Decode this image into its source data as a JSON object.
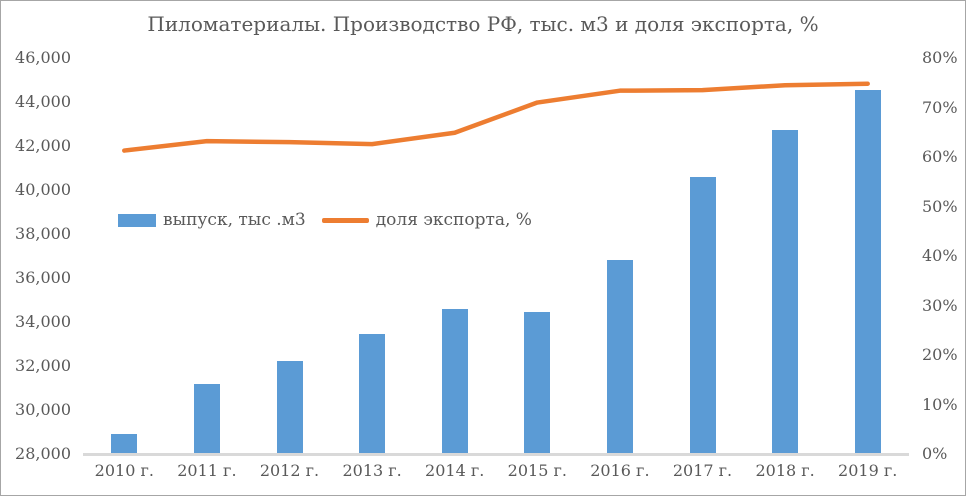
{
  "window": {
    "background": "#ffffff",
    "border_color": "#a6a6a6"
  },
  "colors": {
    "text": "#595959",
    "axis_line": "#d9d9d9",
    "bar_blue": "#5b9bd5",
    "line_orange": "#ed7d31"
  },
  "chart_data": {
    "type": "bar+line combo",
    "title": "Пиломатериалы. Производство РФ, тыс. м3 и доля экспорта, %",
    "categories": [
      "2010 г.",
      "2011 г.",
      "2012 г.",
      "2013 г.",
      "2014 г.",
      "2015 г.",
      "2016 г.",
      "2017 г.",
      "2018 г.",
      "2019 г."
    ],
    "series": [
      {
        "name": "выпуск, тыс .м3",
        "type": "bar",
        "axis": "left",
        "color": "#5b9bd5",
        "values": [
          28900,
          31200,
          32250,
          33450,
          34600,
          34450,
          36800,
          40600,
          42750,
          44550
        ]
      },
      {
        "name": "доля экспорта, %",
        "type": "line",
        "axis": "right",
        "color": "#ed7d31",
        "values": [
          61.3,
          63.2,
          63.0,
          62.6,
          64.9,
          71.0,
          73.4,
          73.5,
          74.5,
          74.8
        ]
      }
    ],
    "left_axis": {
      "min": 28000,
      "max": 46000,
      "step": 2000,
      "ticks": [
        "28,000",
        "30,000",
        "32,000",
        "34,000",
        "36,000",
        "38,000",
        "40,000",
        "42,000",
        "44,000",
        "46,000"
      ]
    },
    "right_axis": {
      "min": 0,
      "max": 80,
      "step": 10,
      "ticks": [
        "0%",
        "10%",
        "20%",
        "30%",
        "40%",
        "50%",
        "60%",
        "70%",
        "80%"
      ]
    },
    "grid": "none",
    "legend_position": "center-left inside plot"
  }
}
